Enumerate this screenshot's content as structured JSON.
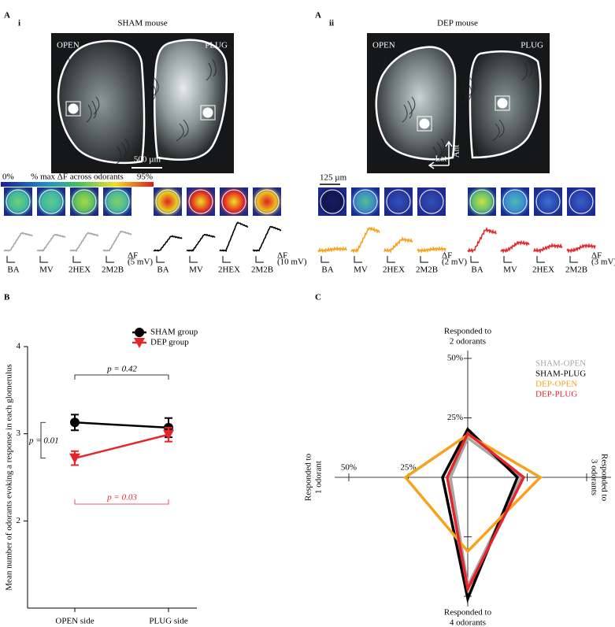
{
  "panel_a": {
    "label": "A",
    "colorbar": {
      "min": "0%",
      "title": "% max ΔF across odorants",
      "max": "95%"
    },
    "odorants": [
      "BA",
      "MV",
      "2HEX",
      "2M2B"
    ],
    "delta_f": "ΔF",
    "sham": {
      "subscript": "i",
      "title": "SHAM mouse",
      "open": "OPEN",
      "plug": "PLUG",
      "scale_bar": "500 µm",
      "open_scale": "(5 mV)",
      "plug_scale": "(10 mV)"
    },
    "dep": {
      "subscript": "ii",
      "title": "DEP mouse",
      "open": "OPEN",
      "plug": "PLUG",
      "scale_bar": "125 µm",
      "lateral": "Lat",
      "anterior": "Ant",
      "open_scale": "(2 mV)",
      "plug_scale": "(3 mV)"
    }
  },
  "chart_data": [
    {
      "type": "line",
      "panel_label": "B",
      "categories": [
        "OPEN side",
        "PLUG side"
      ],
      "series": [
        {
          "name": "SHAM group",
          "color": "#000000",
          "marker": "circle",
          "values": [
            3.13,
            3.07
          ],
          "errors": [
            0.09,
            0.11
          ]
        },
        {
          "name": "DEP group",
          "color": "#e4262b",
          "marker": "triangle-down",
          "values": [
            2.72,
            2.99
          ],
          "errors": [
            0.08,
            0.08
          ]
        }
      ],
      "ylabel": "Mean number of odorants evoking a response in each glomerulus",
      "ylim": [
        1,
        4
      ],
      "yticks": [
        2,
        3,
        4
      ],
      "annotations": [
        {
          "text": "p = 0.42",
          "color": "#000000"
        },
        {
          "text": "p = 0.01",
          "color": "#000000"
        },
        {
          "text": "p = 0.03",
          "color": "#e4262b"
        }
      ]
    },
    {
      "type": "radar",
      "panel_label": "C",
      "axes": [
        {
          "label": [
            "Responded to",
            "2 odorants"
          ]
        },
        {
          "label": [
            "Responded to",
            "3 odorants"
          ]
        },
        {
          "label": [
            "Responded to",
            "4 odorants"
          ]
        },
        {
          "label": [
            "Responded to",
            "1 odorant"
          ]
        }
      ],
      "rlim": [
        0,
        50
      ],
      "rticks": [
        {
          "value": 25,
          "label": "25%"
        },
        {
          "value": 50,
          "label": "50%"
        }
      ],
      "series": [
        {
          "name": "SHAM-OPEN",
          "color": "#a6a6a6",
          "values": [
            16.6,
            22.5,
            45.7,
            7.3
          ]
        },
        {
          "name": "SHAM-PLUG",
          "color": "#000000",
          "values": [
            20.2,
            20.9,
            51,
            10.6
          ]
        },
        {
          "name": "DEP-OPEN",
          "color": "#f7a21b",
          "values": [
            17.9,
            30.5,
            31.1,
            26.2
          ]
        },
        {
          "name": "DEP-PLUG",
          "color": "#e4262b",
          "values": [
            18.5,
            23.5,
            47,
            8.6
          ]
        }
      ]
    }
  ]
}
